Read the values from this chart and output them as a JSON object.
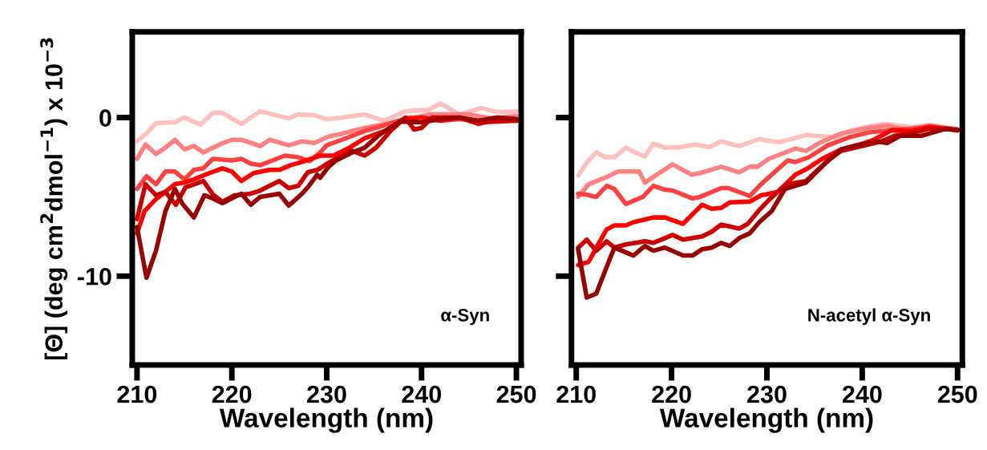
{
  "chart_data": [
    {
      "type": "line",
      "xlabel": "Wavelength (nm)",
      "ylabel": "[Θ] (deg cm$^{2}$dmol$^{−1}$) x 10$^{−3}$",
      "annotations": [
        "α-Syn"
      ],
      "xlim": [
        209.5,
        250.5
      ],
      "ylim": [
        -15.6,
        5.4
      ],
      "xticks": [
        210,
        220,
        230,
        240,
        250
      ],
      "yticks": [
        0,
        -10
      ],
      "marker": "none",
      "line_style": "solid",
      "series": [
        {
          "color": "#ffbfbf",
          "x": [
            210,
            211,
            212,
            214,
            215,
            216.7,
            218,
            219,
            221,
            223,
            226,
            227,
            228.7,
            230,
            231,
            234,
            236,
            238.3,
            240.8,
            242,
            244,
            246.3,
            247.9,
            250
          ],
          "values": [
            -1.5,
            -1.0,
            -0.35,
            -0.3,
            0,
            -0.45,
            0.3,
            0.3,
            -0.4,
            0.4,
            -0.05,
            0.2,
            0.15,
            -0.1,
            -0.05,
            0.2,
            -0.2,
            0.4,
            0.5,
            0.9,
            0.2,
            0.6,
            0.35,
            0.4
          ]
        },
        {
          "color": "#ff8080",
          "x": [
            210,
            210.9,
            212,
            213,
            214,
            215,
            216,
            217,
            218.7,
            220,
            221,
            223,
            224,
            226,
            227.4,
            228.7,
            230.2,
            231,
            234,
            236.3,
            238.6,
            240.8,
            243,
            245,
            247.3,
            250
          ],
          "values": [
            -2.6,
            -1.7,
            -2.3,
            -1.9,
            -1.4,
            -2.0,
            -1.8,
            -2.2,
            -1.7,
            -1.4,
            -1.4,
            -1.8,
            -1.4,
            -1.75,
            -1.5,
            -1.6,
            -1.2,
            -1.1,
            -0.65,
            -0.4,
            -0.1,
            0.2,
            0.2,
            0.2,
            -0.05,
            0.1
          ]
        },
        {
          "color": "#ff4040",
          "x": [
            210,
            211,
            212,
            213,
            214,
            215,
            216,
            217,
            218,
            220,
            221,
            222,
            223,
            225.6,
            227,
            228.2,
            229.3,
            230,
            231.6,
            234,
            236,
            238.6,
            240,
            242,
            244,
            246,
            248,
            250
          ],
          "values": [
            -4.5,
            -3.7,
            -4.2,
            -3.4,
            -3.4,
            -3.9,
            -3.3,
            -3.2,
            -2.6,
            -2.7,
            -2.6,
            -2.9,
            -3.0,
            -2.4,
            -2.5,
            -2.75,
            -2.2,
            -1.75,
            -1.4,
            -0.85,
            -0.5,
            0,
            0,
            -0.2,
            -0.1,
            -0.2,
            0,
            -0.1
          ]
        },
        {
          "color": "#ff0000",
          "x": [
            210,
            210.8,
            211.9,
            214,
            215,
            216,
            217.2,
            219,
            220,
            221,
            222.3,
            224,
            225,
            226.2,
            227.4,
            229.3,
            230.7,
            232.4,
            234,
            236.3,
            238,
            240,
            242,
            244,
            246,
            248,
            250
          ],
          "values": [
            -7.3,
            -5.9,
            -5.2,
            -4.2,
            -4.1,
            -3.9,
            -3.6,
            -3.2,
            -3.4,
            -4.0,
            -3.5,
            -3.3,
            -3.3,
            -3.0,
            -2.8,
            -2.4,
            -2.4,
            -1.9,
            -1.3,
            -0.8,
            -0.15,
            0,
            -0.2,
            0,
            -0.4,
            -0.1,
            -0.1
          ]
        },
        {
          "color": "#cc0000",
          "x": [
            210,
            210.9,
            212,
            213,
            214.1,
            215.1,
            217,
            218,
            219,
            220.3,
            222,
            223,
            224,
            225,
            226,
            227,
            228,
            229,
            230.2,
            231,
            232.7,
            234,
            235.2,
            236.8,
            238.3,
            239.2,
            240,
            241.1,
            244,
            246,
            250
          ],
          "values": [
            -6.4,
            -4.2,
            -4.9,
            -4.7,
            -5.5,
            -4.4,
            -4.0,
            -4.85,
            -5.3,
            -4.9,
            -4.8,
            -4.6,
            -4.3,
            -4.0,
            -4.45,
            -4.3,
            -3.45,
            -3.3,
            -2.85,
            -2.6,
            -2.1,
            -2.4,
            -1.9,
            -0.8,
            0,
            -0.75,
            -0.65,
            0,
            0,
            -0.3,
            -0.2
          ]
        },
        {
          "color": "#990000",
          "x": [
            210,
            211,
            212,
            213,
            214,
            214.8,
            216,
            217.1,
            218,
            219,
            220.3,
            221,
            222,
            223,
            225,
            226,
            227.4,
            228,
            229,
            229.3,
            230.2,
            231,
            232.7,
            234,
            235.5,
            237.7,
            240,
            242,
            244,
            246,
            248,
            250
          ],
          "values": [
            -6.9,
            -10.1,
            -8.4,
            -5.9,
            -4.5,
            -5.45,
            -6.3,
            -4.9,
            -5.1,
            -5.4,
            -5.0,
            -4.8,
            -5.5,
            -5.0,
            -4.8,
            -5.55,
            -4.8,
            -4.4,
            -3.6,
            -3.8,
            -3.1,
            -2.7,
            -2.2,
            -1.9,
            -1.1,
            -0.25,
            -0.3,
            -0.1,
            0,
            -0.2,
            0,
            -0.1
          ]
        }
      ]
    },
    {
      "type": "line",
      "xlabel": "Wavelength (nm)",
      "annotations": [
        "N-acetyl α-Syn"
      ],
      "xlim": [
        209.5,
        250.5
      ],
      "ylim": [
        -15.6,
        5.4
      ],
      "xticks": [
        210,
        220,
        230,
        240,
        250
      ],
      "yticks": [
        0,
        -10
      ],
      "tick_labels": "x",
      "marker": "none",
      "line_style": "solid",
      "series": [
        {
          "color": "#ffbfbf",
          "x": [
            210.2,
            211.3,
            212.1,
            213.1,
            214,
            215.2,
            216,
            217.2,
            218.1,
            219.3,
            221,
            222.5,
            224,
            225.2,
            227.1,
            229.2,
            230,
            231.3,
            234.1,
            237.2,
            238.9,
            241.2,
            242.5,
            245.1,
            247.1,
            250
          ],
          "values": [
            -3.65,
            -2.7,
            -2.2,
            -2.5,
            -2.5,
            -1.9,
            -2.15,
            -2.45,
            -1.65,
            -1.9,
            -1.85,
            -1.7,
            -1.85,
            -1.5,
            -1.8,
            -1.35,
            -1.45,
            -1.55,
            -1.1,
            -1.25,
            -0.8,
            -0.5,
            -0.4,
            -0.6,
            -0.45,
            -0.75
          ]
        },
        {
          "color": "#ff8080",
          "x": [
            210.2,
            211.3,
            213,
            214.4,
            216.6,
            217.2,
            220.1,
            222.1,
            223,
            225.2,
            227.1,
            228.2,
            229,
            230.2,
            233,
            234.1,
            235.5,
            237.8,
            240.6,
            242.6,
            245,
            247.1,
            250
          ],
          "values": [
            -5.0,
            -4.2,
            -3.8,
            -3.4,
            -3.4,
            -4.1,
            -2.95,
            -3.6,
            -3.5,
            -3.1,
            -3.45,
            -3.1,
            -3.1,
            -2.6,
            -1.95,
            -2.1,
            -1.6,
            -1.0,
            -0.65,
            -0.5,
            -0.8,
            -0.5,
            -0.8
          ]
        },
        {
          "color": "#ff4040",
          "x": [
            210.2,
            211,
            212.1,
            213.2,
            214,
            215.2,
            217,
            218.1,
            219.3,
            220.1,
            222.2,
            223,
            225.2,
            226,
            227.1,
            228.2,
            229.4,
            230.5,
            232.2,
            233,
            234.4,
            236.4,
            238.6,
            240.6,
            242.8,
            245,
            247.1,
            250
          ],
          "values": [
            -4.8,
            -4.85,
            -5.0,
            -4.3,
            -4.5,
            -5.45,
            -5.0,
            -4.3,
            -4.55,
            -4.6,
            -5.1,
            -5.0,
            -4.45,
            -4.45,
            -4.7,
            -4.95,
            -4.2,
            -3.6,
            -2.7,
            -2.8,
            -2.5,
            -1.75,
            -1.25,
            -0.95,
            -0.8,
            -0.7,
            -0.55,
            -0.75
          ]
        },
        {
          "color": "#ff0000",
          "x": [
            210.2,
            211.3,
            212.2,
            213.2,
            214,
            215.2,
            216,
            218.1,
            219.3,
            221.2,
            223.2,
            224.2,
            225.2,
            226.1,
            228.2,
            229.4,
            231.1,
            233,
            234.3,
            235.8,
            237.8,
            240,
            241.2,
            243.1,
            245,
            247.1,
            250
          ],
          "values": [
            -9.3,
            -9.1,
            -8.1,
            -7.05,
            -6.8,
            -6.8,
            -6.6,
            -6.3,
            -6.3,
            -6.7,
            -5.5,
            -5.75,
            -5.7,
            -5.35,
            -5.3,
            -4.9,
            -4.7,
            -3.6,
            -3.2,
            -2.6,
            -2.0,
            -1.65,
            -1.4,
            -0.8,
            -0.85,
            -0.6,
            -0.8
          ]
        },
        {
          "color": "#cc0000",
          "x": [
            210.2,
            211.1,
            212.1,
            213.2,
            214,
            215.2,
            217.2,
            218.1,
            219.3,
            220.1,
            221.2,
            223.2,
            224.2,
            225.2,
            227.1,
            228,
            229.1,
            230.2,
            231.1,
            232.2,
            234.1,
            236.4,
            237.8,
            240,
            242,
            243.4,
            245,
            247.1,
            250
          ],
          "values": [
            -8.2,
            -7.7,
            -8.4,
            -7.8,
            -8.2,
            -8.0,
            -7.8,
            -7.9,
            -7.6,
            -7.4,
            -7.7,
            -7.5,
            -7.2,
            -6.75,
            -7.0,
            -6.7,
            -5.9,
            -5.2,
            -4.7,
            -4.2,
            -4.0,
            -2.7,
            -2.1,
            -1.8,
            -1.5,
            -1.15,
            -1.0,
            -0.7,
            -0.75
          ]
        },
        {
          "color": "#990000",
          "x": [
            210.2,
            211.1,
            212.1,
            213.2,
            214,
            215.2,
            216,
            217.2,
            218.1,
            219.3,
            221.2,
            222.2,
            223.2,
            224.2,
            225.2,
            226.1,
            227.1,
            228.2,
            229.2,
            230.5,
            231.9,
            234.1,
            236.1,
            237.8,
            239.5,
            241.5,
            242.6,
            244,
            246.2,
            248.8,
            250
          ],
          "values": [
            -8.3,
            -11.35,
            -11.1,
            -9.4,
            -8.2,
            -8.5,
            -8.7,
            -8.1,
            -8.4,
            -8.2,
            -8.7,
            -8.7,
            -8.3,
            -8.2,
            -7.9,
            -8.1,
            -7.6,
            -7.3,
            -6.6,
            -5.9,
            -4.5,
            -4.1,
            -2.9,
            -2.0,
            -1.75,
            -1.5,
            -1.6,
            -1.15,
            -1.15,
            -0.7,
            -0.8
          ]
        }
      ]
    }
  ]
}
